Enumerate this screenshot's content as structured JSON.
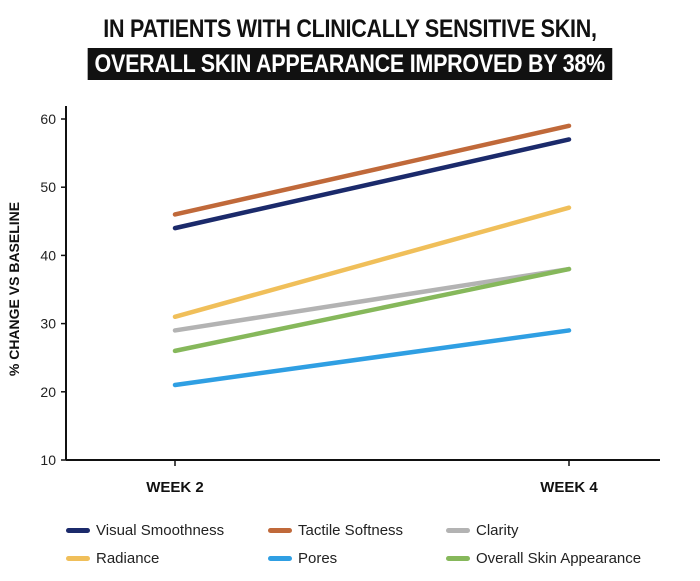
{
  "title": {
    "line1": "IN PATIENTS WITH CLINICALLY SENSITIVE SKIN,",
    "line2": "OVERALL SKIN APPEARANCE IMPROVED BY 38%"
  },
  "chart_data": {
    "type": "line",
    "title": "IN PATIENTS WITH CLINICALLY SENSITIVE SKIN, OVERALL SKIN APPEARANCE IMPROVED BY 38%",
    "xlabel": "",
    "ylabel": "% CHANGE VS BASELINE",
    "categories": [
      "WEEK 2",
      "WEEK 4"
    ],
    "ylim": [
      10,
      60
    ],
    "yticks": [
      10,
      20,
      30,
      40,
      50,
      60
    ],
    "legend_position": "bottom",
    "series": [
      {
        "name": "Visual Smoothness",
        "color": "#1b2a6b",
        "values": [
          44,
          57
        ]
      },
      {
        "name": "Tactile Softness",
        "color": "#c0693a",
        "values": [
          46,
          59
        ]
      },
      {
        "name": "Clarity",
        "color": "#b3b3b3",
        "values": [
          29,
          38
        ]
      },
      {
        "name": "Radiance",
        "color": "#f0bf5a",
        "values": [
          31,
          47
        ]
      },
      {
        "name": "Pores",
        "color": "#2f9fe3",
        "values": [
          21,
          29
        ]
      },
      {
        "name": "Overall Skin Appearance",
        "color": "#86b85b",
        "values": [
          26,
          38
        ]
      }
    ]
  }
}
